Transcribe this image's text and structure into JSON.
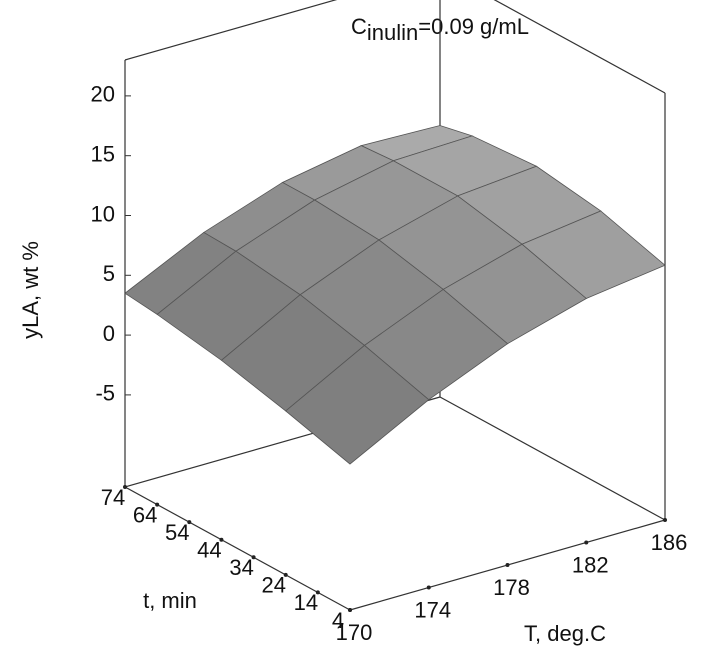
{
  "chart_data": {
    "type": "surface3d",
    "title": "C",
    "title_subscript": "inulin",
    "title_suffix": "=0.09 g/mL",
    "x_label": "T, deg.C",
    "y_label": "t, min",
    "z_label": "yLA, wt %",
    "xlim": [
      170,
      186
    ],
    "ylim": [
      4,
      74
    ],
    "zlim": [
      -12.7,
      23
    ],
    "xticks": [
      170,
      174,
      178,
      182,
      186
    ],
    "yticks": [
      4,
      14,
      24,
      34,
      44,
      54,
      64,
      74
    ],
    "zticks": [
      -5,
      0,
      5,
      10,
      15,
      20
    ],
    "x": [
      170,
      174,
      178,
      182,
      186
    ],
    "y": [
      4,
      24,
      44,
      64,
      74
    ],
    "z": [
      [
        -0.5,
        3.0,
        5.8,
        7.7,
        8.6
      ],
      [
        1.0,
        4.6,
        7.4,
        9.3,
        10.2
      ],
      [
        2.3,
        5.9,
        8.6,
        10.4,
        11.0
      ],
      [
        3.2,
        6.6,
        9.0,
        10.4,
        10.6
      ],
      [
        3.5,
        6.7,
        9.0,
        10.2,
        10.0
      ]
    ],
    "color": "#a8a8a8"
  }
}
